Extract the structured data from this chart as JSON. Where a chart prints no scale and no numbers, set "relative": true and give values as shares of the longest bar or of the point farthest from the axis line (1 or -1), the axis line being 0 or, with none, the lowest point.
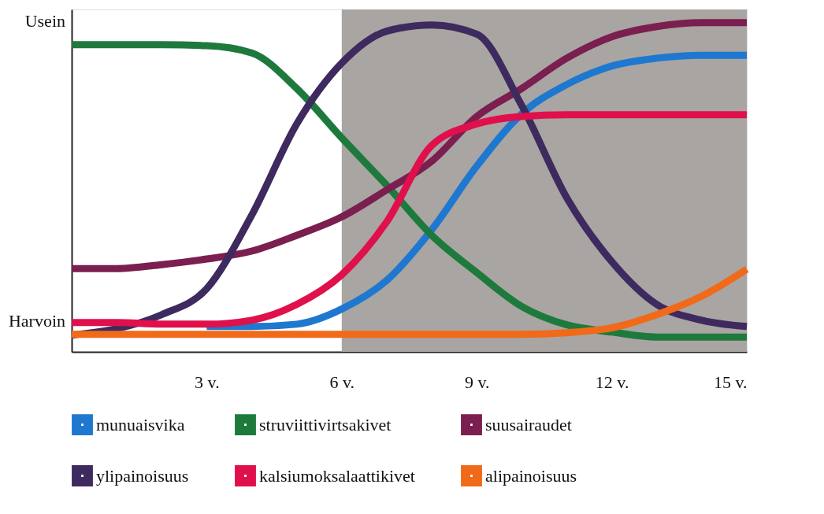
{
  "chart_data": {
    "type": "line",
    "relative": true,
    "x": [
      0,
      1,
      2,
      3,
      4,
      5,
      6,
      7,
      8,
      9,
      10,
      11,
      12,
      13,
      14,
      15
    ],
    "xlim": [
      0,
      15
    ],
    "xticks": [
      {
        "value": 3,
        "label": "3 v."
      },
      {
        "value": 6,
        "label": "6 v."
      },
      {
        "value": 9,
        "label": "9 v."
      },
      {
        "value": 12,
        "label": "12 v."
      },
      {
        "value": 15,
        "label": "15 v."
      }
    ],
    "annotations": [
      "Usein",
      "Harvoin"
    ],
    "bands": [
      {
        "axis": "x",
        "from": 6,
        "to": 15,
        "color": "#a9a5a3"
      }
    ],
    "grid": false,
    "legend": "bottom",
    "line_style": "solid",
    "series": [
      {
        "name": "munuaisvika",
        "color": "#1f78d0",
        "values": [
          null,
          null,
          null,
          0.077,
          0.077,
          0.084,
          0.13,
          0.217,
          0.371,
          0.564,
          0.723,
          0.812,
          0.868,
          0.892,
          0.901,
          0.901
        ]
      },
      {
        "name": "struviittivirtsakivet",
        "color": "#1e7a3c",
        "values": [
          0.933,
          0.933,
          0.933,
          0.93,
          0.908,
          0.8,
          0.65,
          0.506,
          0.354,
          0.241,
          0.138,
          0.082,
          0.06,
          0.045,
          0.045,
          0.045
        ]
      },
      {
        "name": "suusairaudet",
        "color": "#7a1f4f",
        "values": [
          0.253,
          0.253,
          0.265,
          0.282,
          0.306,
          0.354,
          0.41,
          0.492,
          0.579,
          0.715,
          0.8,
          0.892,
          0.957,
          0.988,
          1.0,
          1.0
        ]
      },
      {
        "name": "ylipainoisuus",
        "color": "#3e2a5e",
        "values": [
          0.051,
          0.07,
          0.113,
          0.192,
          0.415,
          0.692,
          0.877,
          0.974,
          0.993,
          0.965,
          0.748,
          0.468,
          0.274,
          0.144,
          0.096,
          0.077
        ]
      },
      {
        "name": "kalsiumoksalaattikivet",
        "color": "#e0104c",
        "values": [
          0.089,
          0.089,
          0.084,
          0.084,
          0.096,
          0.144,
          0.234,
          0.395,
          0.627,
          0.692,
          0.715,
          0.72,
          0.72,
          0.72,
          0.72,
          0.72
        ]
      },
      {
        "name": "alipainoisuus",
        "color": "#f06a1a",
        "values": [
          0.053,
          0.053,
          0.053,
          0.053,
          0.053,
          0.053,
          0.053,
          0.053,
          0.053,
          0.053,
          0.053,
          0.058,
          0.073,
          0.113,
          0.169,
          0.251
        ]
      }
    ]
  }
}
